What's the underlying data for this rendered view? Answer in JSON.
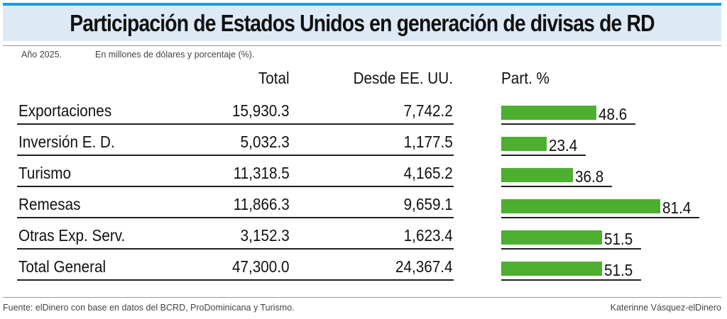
{
  "title": "Participación de Estados Unidos en generación de divisas de RD",
  "meta": {
    "year": "Año 2025.",
    "units": "En millones de dólares y porcentaje (%)."
  },
  "columns": {
    "total": "Total",
    "desde": "Desde EE. UU.",
    "part": "Part. %"
  },
  "rows": [
    {
      "label": "Exportaciones",
      "total": "15,930.3",
      "desde": "7,742.2",
      "part": "48.6"
    },
    {
      "label": "Inversión E. D.",
      "total": "5,032.3",
      "desde": "1,177.5",
      "part": "23.4"
    },
    {
      "label": "Turismo",
      "total": "11,318.5",
      "desde": "4,165.2",
      "part": "36.8"
    },
    {
      "label": "Remesas",
      "total": "11,866.3",
      "desde": "9,659.1",
      "part": "81.4"
    },
    {
      "label": "Otras Exp. Serv.",
      "total": "3,152.3",
      "desde": "1,623.4",
      "part": "51.5"
    },
    {
      "label": "Total General",
      "total": "47,300.0",
      "desde": "24,367.4",
      "part": "51.5"
    }
  ],
  "chart_data": {
    "type": "bar",
    "orientation": "horizontal",
    "categories": [
      "Exportaciones",
      "Inversión E. D.",
      "Turismo",
      "Remesas",
      "Otras Exp. Serv.",
      "Total General"
    ],
    "values": [
      48.6,
      23.4,
      36.8,
      81.4,
      51.5,
      51.5
    ],
    "color": "#4caf2f"
  },
  "footer": {
    "source": "Fuente: elDinero con base en datos del BCRD, ProDominicana y Turismo.",
    "credit": "Katerinne Vásquez-elDinero"
  },
  "colors": {
    "title_band": "#ddeaf6",
    "title_accent": "#1e9be2",
    "bar": "#4caf2f"
  }
}
